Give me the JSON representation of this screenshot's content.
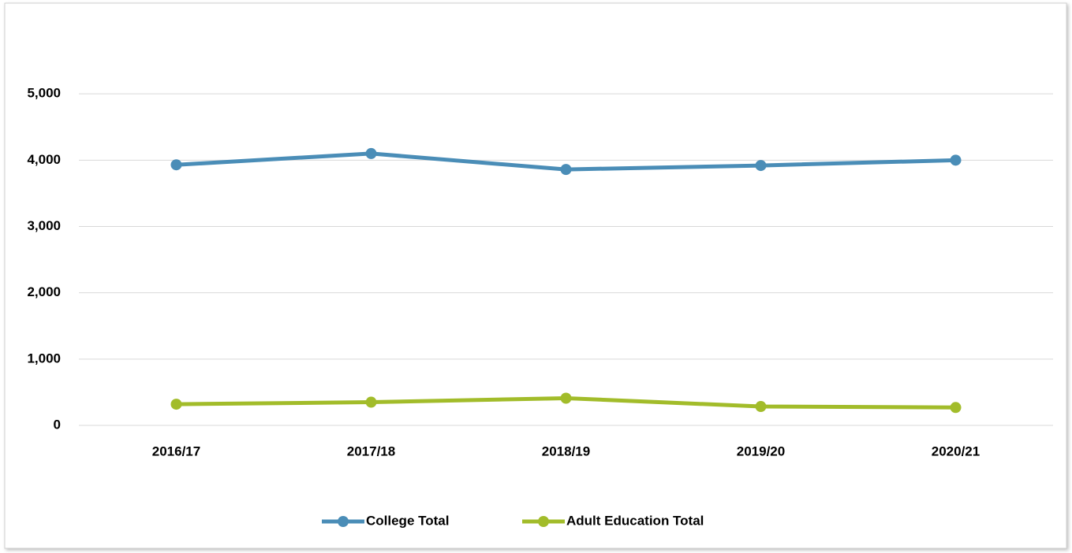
{
  "chart_data": {
    "type": "line",
    "categories": [
      "2016/17",
      "2017/18",
      "2018/19",
      "2019/20",
      "2020/21"
    ],
    "series": [
      {
        "name": "College Total",
        "color": "#4a8db7",
        "values": [
          3930,
          4100,
          3860,
          3920,
          4000
        ]
      },
      {
        "name": "Adult Education Total",
        "color": "#a2bc2a",
        "values": [
          320,
          350,
          410,
          285,
          270
        ]
      }
    ],
    "ylim": [
      0,
      6000
    ],
    "yticks": [
      0,
      {
        "value": 1000,
        "label": "1,000"
      },
      {
        "value": 2000,
        "label": "2,000"
      },
      {
        "value": 3000,
        "label": "3,000"
      },
      {
        "value": 4000,
        "label": "4,000"
      },
      {
        "value": 5000,
        "label": "5,000"
      }
    ],
    "grid": true,
    "legend": "bottom"
  }
}
